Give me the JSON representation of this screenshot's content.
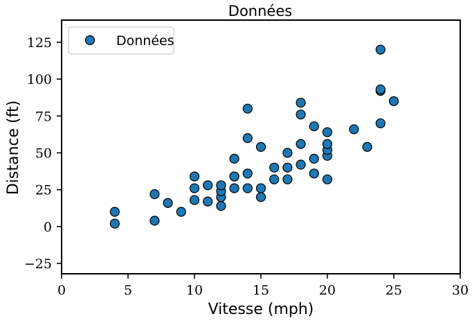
{
  "chart_data": {
    "type": "scatter",
    "title": "Données",
    "xlabel": "Vitesse (mph)",
    "ylabel": "Distance (ft)",
    "xlim": [
      0,
      30
    ],
    "ylim": [
      -32,
      140
    ],
    "xticks": [
      0,
      5,
      10,
      15,
      20,
      25,
      30
    ],
    "yticks": [
      -25,
      0,
      25,
      50,
      75,
      100,
      125
    ],
    "xtick_labels": [
      "0",
      "5",
      "10",
      "15",
      "20",
      "25",
      "30"
    ],
    "ytick_labels": [
      "−25",
      "0",
      "25",
      "50",
      "75",
      "100",
      "125"
    ],
    "grid": false,
    "legend": {
      "placement": "top-left",
      "entries": [
        "Données"
      ]
    },
    "series": [
      {
        "name": "Données",
        "color": "#1f77b4",
        "marker": "circle",
        "x": [
          4,
          4,
          7,
          7,
          8,
          9,
          10,
          10,
          10,
          11,
          11,
          12,
          12,
          12,
          12,
          13,
          13,
          13,
          13,
          14,
          14,
          14,
          14,
          15,
          15,
          15,
          16,
          16,
          17,
          17,
          17,
          18,
          18,
          18,
          18,
          19,
          19,
          19,
          20,
          20,
          20,
          20,
          20,
          22,
          23,
          24,
          24,
          24,
          24,
          25
        ],
        "y": [
          2,
          10,
          4,
          22,
          16,
          10,
          18,
          26,
          34,
          17,
          28,
          14,
          20,
          24,
          28,
          26,
          34,
          34,
          46,
          26,
          36,
          60,
          80,
          20,
          26,
          54,
          32,
          40,
          32,
          40,
          50,
          42,
          56,
          76,
          84,
          36,
          46,
          68,
          32,
          48,
          52,
          56,
          64,
          66,
          54,
          70,
          92,
          93,
          120,
          85
        ]
      }
    ]
  }
}
